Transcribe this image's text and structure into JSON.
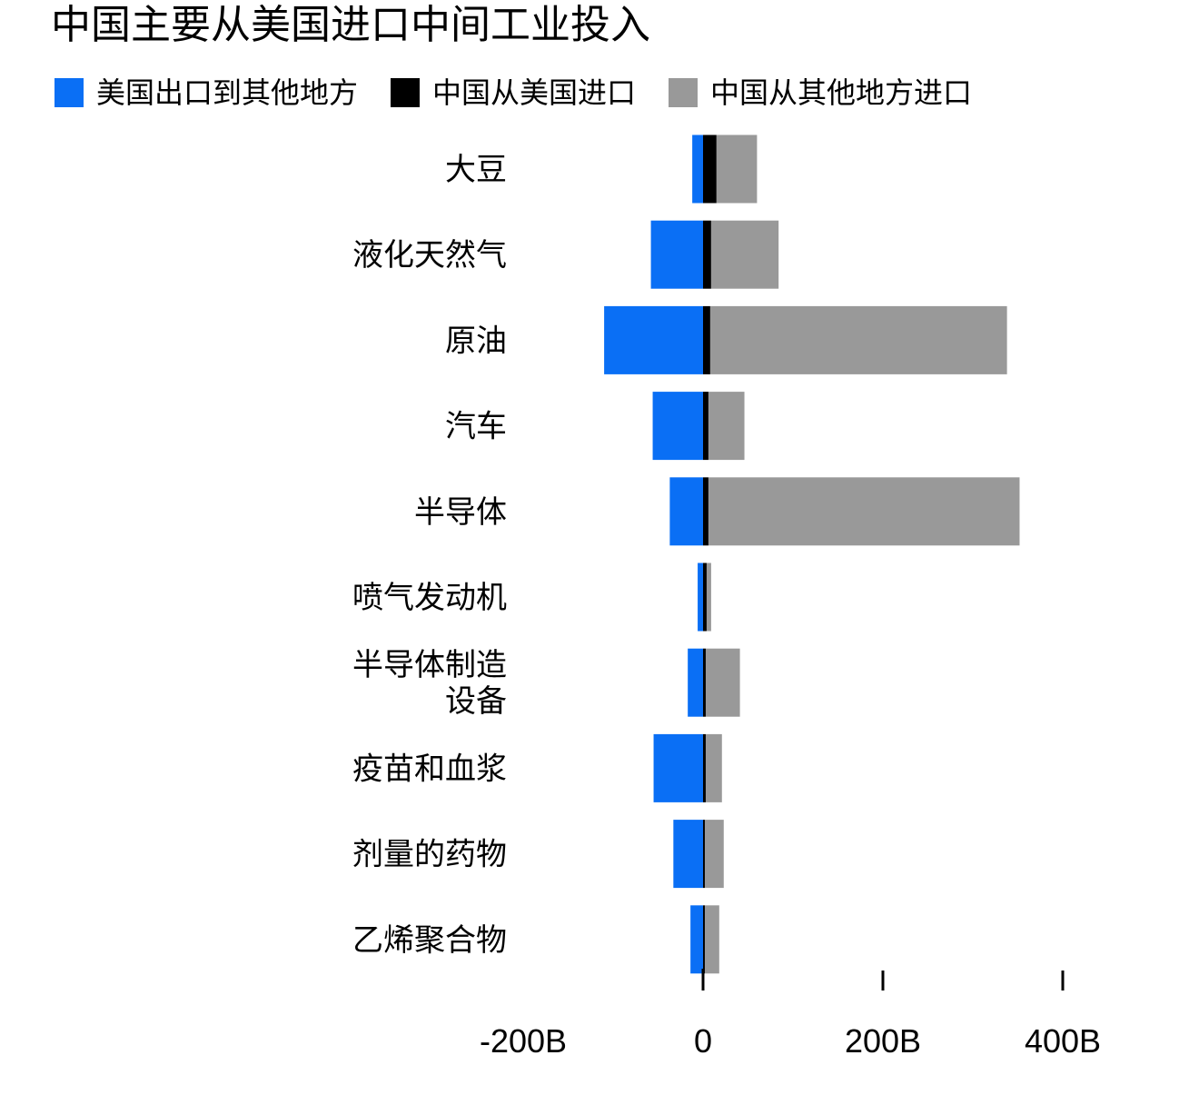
{
  "chart_data": {
    "type": "bar",
    "orientation": "horizontal",
    "stacked": true,
    "title": "中国主要从美国进口中间工业投入",
    "xlabel": "",
    "ylabel": "",
    "categories": [
      [
        "大豆"
      ],
      [
        "液化天然气"
      ],
      [
        "原油"
      ],
      [
        "汽车"
      ],
      [
        "半导体"
      ],
      [
        "喷气发动机"
      ],
      [
        "半导体制造",
        "设备"
      ],
      [
        "疫苗和血浆"
      ],
      [
        "剂量的药物"
      ],
      [
        "乙烯聚合物"
      ]
    ],
    "series": [
      {
        "name": "美国出口到其他地方",
        "color": "#0a6ff5",
        "direction": "negative",
        "values": [
          12,
          58,
          110,
          56,
          37,
          6,
          17,
          55,
          33,
          14
        ]
      },
      {
        "name": "中国从美国进口",
        "color": "#000000",
        "direction": "positive",
        "values": [
          15,
          9,
          8,
          6,
          6,
          4,
          3,
          3,
          2,
          2
        ]
      },
      {
        "name": "中国从其他地方进口",
        "color": "#999999",
        "direction": "positive",
        "values": [
          45,
          75,
          330,
          40,
          346,
          5,
          38,
          18,
          21,
          16
        ]
      }
    ],
    "xlim": [
      -200,
      400
    ],
    "xticks": [
      -200,
      0,
      200,
      400
    ],
    "xtick_labels": [
      "-200B",
      "0",
      "200B",
      "400B"
    ],
    "unit": "B",
    "grid": false,
    "legend_position": "top-left"
  }
}
